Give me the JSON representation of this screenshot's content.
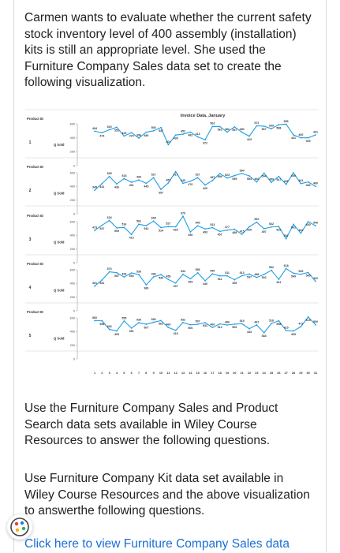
{
  "intro": "Carmen wants to evaluate whether the current safety stock inventory level of 400 assembly (installation) kits is still an appropriate level. She used the Furniture Company Sales data set to create the following visualization.",
  "paragraph_2": "Use the Furniture Company Sales and Product Search data sets available in Wiley Course Resources to answer the following questions.",
  "paragraph_3": "Use Furniture Company Kit data set available in Wiley Course Resources and the above visualization to answerthe following questions.",
  "link_text": "Click here to view Furniture Company Sales data",
  "chart_data": {
    "type": "line",
    "title": "Invoice Data, January",
    "row_header": "Product ID",
    "ylabel": "Q Sold",
    "yticks": [
      0,
      200,
      400,
      600
    ],
    "ylim": [
      0,
      600
    ],
    "x": [
      1,
      2,
      3,
      4,
      5,
      6,
      7,
      8,
      9,
      10,
      11,
      12,
      13,
      14,
      15,
      16,
      17,
      18,
      19,
      20,
      21,
      22,
      23,
      24,
      25,
      26,
      27,
      28,
      29,
      30,
      31
    ],
    "series": [
      {
        "name": "1",
        "values": [
          494,
          474,
          515,
          551,
          425,
          474,
          396,
          480,
          500,
          547,
          301,
          439,
          452,
          482,
          413,
          372,
          563,
          561,
          482,
          557,
          480,
          423,
          572,
          567,
          530,
          588,
          596,
          441,
          400,
          400,
          441
        ]
      },
      {
        "name": "2",
        "values": [
          345,
          441,
          545,
          436,
          515,
          461,
          494,
          445,
          527,
          357,
          451,
          617,
          445,
          476,
          527,
          420,
          487,
          589,
          523,
          559,
          590,
          554,
          466,
          594,
          459,
          547,
          430,
          600,
          441,
          466,
          400
        ]
      },
      {
        "name": "3",
        "values": [
          473,
          547,
          618,
          509,
          516,
          413,
          562,
          542,
          608,
          514,
          527,
          525,
          679,
          450,
          540,
          493,
          513,
          457,
          477,
          488,
          415,
          525,
          592,
          497,
          522,
          529,
          351,
          561,
          432,
          600,
          540
        ]
      },
      {
        "name": "4",
        "values": [
          361,
          451,
          570,
          557,
          494,
          554,
          530,
          380,
          496,
          530,
          458,
          407,
          534,
          469,
          556,
          440,
          540,
          511,
          511,
          455,
          513,
          537,
          488,
          532,
          592,
          461,
          618,
          549,
          535,
          560,
          432
        ]
      },
      {
        "name": "5",
        "values": [
          560,
          558,
          433,
          409,
          555,
          451,
          530,
          507,
          536,
          561,
          460,
          418,
          532,
          500,
          507,
          531,
          460,
          512,
          496,
          509,
          515,
          443,
          497,
          384,
          518,
          558,
          415,
          409,
          472,
          613,
          500
        ]
      }
    ]
  }
}
